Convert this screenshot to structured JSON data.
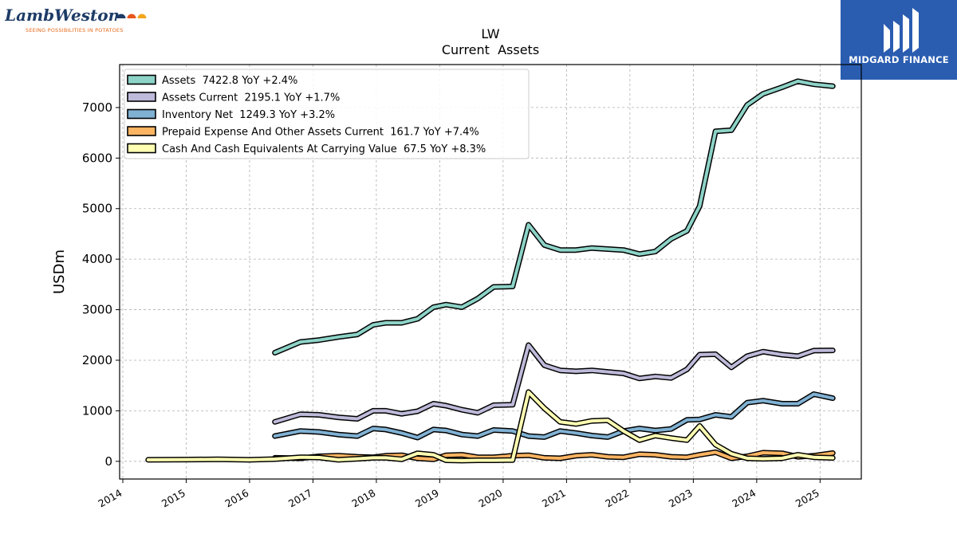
{
  "brand": {
    "name": "LambWeston",
    "tagline": "SEEING POSSIBILITIES IN POTATOES",
    "logo_dot_colors": [
      "#1d3b66",
      "#e8541a",
      "#f2a61c"
    ]
  },
  "badge": {
    "name": "MIDGARD FINANCE",
    "background": "#2a5db0",
    "icon": "midgard-logo-icon"
  },
  "chart_data": {
    "type": "line",
    "title": "LW",
    "subtitle": "Current  Assets",
    "ylabel": "USDm",
    "xlabel": "",
    "ylim": [
      -350,
      7850
    ],
    "xlim": [
      2013.95,
      2025.65
    ],
    "yticks": [
      0,
      1000,
      2000,
      3000,
      4000,
      5000,
      6000,
      7000
    ],
    "xticks": [
      "2014",
      "2015",
      "2016",
      "2017",
      "2018",
      "2019",
      "2020",
      "2021",
      "2022",
      "2023",
      "2024",
      "2025"
    ],
    "grid": true,
    "legend_position": "top-left",
    "series": [
      {
        "name": "Assets",
        "legend_label": "Assets  7422.8 YoY +2.4%",
        "color": "#8dd3c7",
        "points": [
          [
            2016.4,
            2150
          ],
          [
            2016.8,
            2360
          ],
          [
            2017.1,
            2400
          ],
          [
            2017.4,
            2460
          ],
          [
            2017.7,
            2510
          ],
          [
            2017.95,
            2700
          ],
          [
            2018.15,
            2740
          ],
          [
            2018.4,
            2740
          ],
          [
            2018.65,
            2820
          ],
          [
            2018.9,
            3050
          ],
          [
            2019.1,
            3100
          ],
          [
            2019.35,
            3050
          ],
          [
            2019.6,
            3220
          ],
          [
            2019.85,
            3450
          ],
          [
            2020.15,
            3460
          ],
          [
            2020.4,
            4680
          ],
          [
            2020.65,
            4280
          ],
          [
            2020.9,
            4180
          ],
          [
            2021.15,
            4180
          ],
          [
            2021.4,
            4220
          ],
          [
            2021.65,
            4200
          ],
          [
            2021.9,
            4180
          ],
          [
            2022.15,
            4100
          ],
          [
            2022.4,
            4150
          ],
          [
            2022.65,
            4400
          ],
          [
            2022.9,
            4560
          ],
          [
            2023.1,
            5050
          ],
          [
            2023.35,
            6530
          ],
          [
            2023.6,
            6550
          ],
          [
            2023.85,
            7050
          ],
          [
            2024.1,
            7270
          ],
          [
            2024.4,
            7400
          ],
          [
            2024.65,
            7520
          ],
          [
            2024.9,
            7460
          ],
          [
            2025.2,
            7423
          ]
        ]
      },
      {
        "name": "Assets Current",
        "legend_label": "Assets Current  2195.1 YoY +1.7%",
        "color": "#bebada",
        "points": [
          [
            2016.4,
            780
          ],
          [
            2016.8,
            930
          ],
          [
            2017.1,
            920
          ],
          [
            2017.4,
            870
          ],
          [
            2017.7,
            840
          ],
          [
            2017.95,
            1000
          ],
          [
            2018.15,
            1000
          ],
          [
            2018.4,
            940
          ],
          [
            2018.65,
            990
          ],
          [
            2018.9,
            1140
          ],
          [
            2019.1,
            1100
          ],
          [
            2019.35,
            1020
          ],
          [
            2019.6,
            960
          ],
          [
            2019.85,
            1110
          ],
          [
            2020.15,
            1120
          ],
          [
            2020.4,
            2300
          ],
          [
            2020.65,
            1900
          ],
          [
            2020.9,
            1800
          ],
          [
            2021.15,
            1780
          ],
          [
            2021.4,
            1800
          ],
          [
            2021.65,
            1770
          ],
          [
            2021.9,
            1740
          ],
          [
            2022.15,
            1640
          ],
          [
            2022.4,
            1680
          ],
          [
            2022.65,
            1650
          ],
          [
            2022.9,
            1820
          ],
          [
            2023.1,
            2110
          ],
          [
            2023.35,
            2120
          ],
          [
            2023.6,
            1860
          ],
          [
            2023.85,
            2080
          ],
          [
            2024.1,
            2170
          ],
          [
            2024.4,
            2110
          ],
          [
            2024.65,
            2080
          ],
          [
            2024.9,
            2190
          ],
          [
            2025.2,
            2195
          ]
        ]
      },
      {
        "name": "Inventory Net",
        "legend_label": "Inventory Net  1249.3 YoY +3.2%",
        "color": "#80b1d3",
        "points": [
          [
            2016.4,
            500
          ],
          [
            2016.8,
            600
          ],
          [
            2017.1,
            580
          ],
          [
            2017.4,
            530
          ],
          [
            2017.7,
            500
          ],
          [
            2017.95,
            650
          ],
          [
            2018.15,
            630
          ],
          [
            2018.4,
            560
          ],
          [
            2018.65,
            470
          ],
          [
            2018.9,
            630
          ],
          [
            2019.1,
            610
          ],
          [
            2019.35,
            530
          ],
          [
            2019.6,
            500
          ],
          [
            2019.85,
            620
          ],
          [
            2020.15,
            600
          ],
          [
            2020.4,
            500
          ],
          [
            2020.65,
            480
          ],
          [
            2020.9,
            600
          ],
          [
            2021.15,
            560
          ],
          [
            2021.4,
            510
          ],
          [
            2021.65,
            480
          ],
          [
            2021.9,
            600
          ],
          [
            2022.15,
            650
          ],
          [
            2022.4,
            610
          ],
          [
            2022.65,
            640
          ],
          [
            2022.9,
            820
          ],
          [
            2023.1,
            830
          ],
          [
            2023.35,
            920
          ],
          [
            2023.6,
            880
          ],
          [
            2023.85,
            1160
          ],
          [
            2024.1,
            1200
          ],
          [
            2024.4,
            1140
          ],
          [
            2024.65,
            1140
          ],
          [
            2024.9,
            1330
          ],
          [
            2025.2,
            1249
          ]
        ]
      },
      {
        "name": "Prepaid Expense And Other Assets Current",
        "legend_label": "Prepaid Expense And Other Assets Current  161.7 YoY +7.4%",
        "color": "#fdb462",
        "points": [
          [
            2016.4,
            70
          ],
          [
            2016.8,
            60
          ],
          [
            2017.1,
            100
          ],
          [
            2017.4,
            110
          ],
          [
            2017.7,
            90
          ],
          [
            2017.95,
            80
          ],
          [
            2018.15,
            110
          ],
          [
            2018.4,
            120
          ],
          [
            2018.65,
            60
          ],
          [
            2018.9,
            40
          ],
          [
            2019.1,
            120
          ],
          [
            2019.35,
            130
          ],
          [
            2019.6,
            80
          ],
          [
            2019.85,
            80
          ],
          [
            2020.15,
            110
          ],
          [
            2020.4,
            120
          ],
          [
            2020.65,
            70
          ],
          [
            2020.9,
            60
          ],
          [
            2021.15,
            110
          ],
          [
            2021.4,
            130
          ],
          [
            2021.65,
            90
          ],
          [
            2021.9,
            80
          ],
          [
            2022.15,
            140
          ],
          [
            2022.4,
            130
          ],
          [
            2022.65,
            90
          ],
          [
            2022.9,
            80
          ],
          [
            2023.1,
            130
          ],
          [
            2023.35,
            180
          ],
          [
            2023.6,
            60
          ],
          [
            2023.85,
            100
          ],
          [
            2024.1,
            170
          ],
          [
            2024.4,
            160
          ],
          [
            2024.65,
            90
          ],
          [
            2024.9,
            110
          ],
          [
            2025.2,
            162
          ]
        ]
      },
      {
        "name": "Cash And Cash Equivalents At Carrying Value",
        "legend_label": "Cash And Cash Equivalents At Carrying Value  67.5 YoY +8.3%",
        "color": "#ffffb3",
        "points": [
          [
            2014.4,
            30
          ],
          [
            2015.0,
            35
          ],
          [
            2015.5,
            40
          ],
          [
            2016.0,
            30
          ],
          [
            2016.4,
            45
          ],
          [
            2016.8,
            80
          ],
          [
            2017.1,
            75
          ],
          [
            2017.4,
            30
          ],
          [
            2017.7,
            50
          ],
          [
            2017.95,
            70
          ],
          [
            2018.15,
            70
          ],
          [
            2018.4,
            40
          ],
          [
            2018.65,
            160
          ],
          [
            2018.9,
            130
          ],
          [
            2019.1,
            20
          ],
          [
            2019.35,
            15
          ],
          [
            2019.6,
            20
          ],
          [
            2019.85,
            20
          ],
          [
            2020.15,
            25
          ],
          [
            2020.4,
            1370
          ],
          [
            2020.65,
            1050
          ],
          [
            2020.9,
            780
          ],
          [
            2021.15,
            740
          ],
          [
            2021.4,
            800
          ],
          [
            2021.65,
            810
          ],
          [
            2021.9,
            600
          ],
          [
            2022.15,
            420
          ],
          [
            2022.4,
            510
          ],
          [
            2022.65,
            460
          ],
          [
            2022.9,
            420
          ],
          [
            2023.1,
            700
          ],
          [
            2023.35,
            330
          ],
          [
            2023.6,
            150
          ],
          [
            2023.85,
            60
          ],
          [
            2024.1,
            50
          ],
          [
            2024.4,
            60
          ],
          [
            2024.65,
            130
          ],
          [
            2024.9,
            80
          ],
          [
            2025.2,
            68
          ]
        ]
      }
    ]
  }
}
